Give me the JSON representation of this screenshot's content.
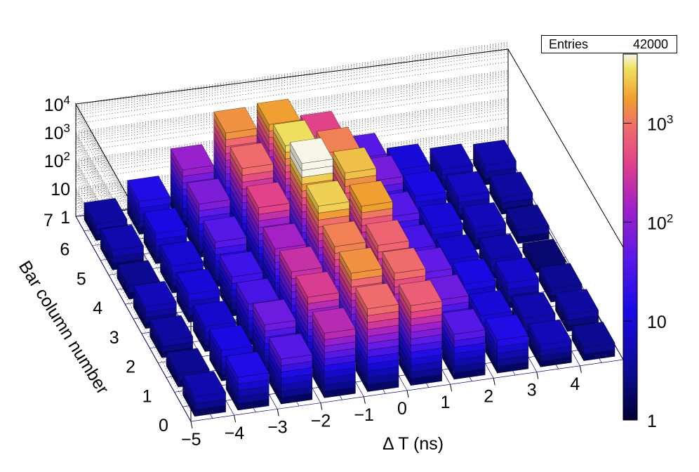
{
  "stats_box": {
    "label": "Entries",
    "value": "42000"
  },
  "chart_data": {
    "type": "lego",
    "title": "",
    "xlabel": "Δ T (ns)",
    "ylabel": "Bar column number",
    "zscale": "log",
    "xlim": [
      -5,
      5
    ],
    "ylim": [
      0,
      7
    ],
    "zlim": [
      1,
      10000
    ],
    "x_ticks": [
      "−5",
      "−4",
      "−3",
      "−2",
      "−1",
      "0",
      "1",
      "2",
      "3",
      "4"
    ],
    "y_ticks": [
      "0",
      "1",
      "2",
      "3",
      "4",
      "5",
      "6",
      "7"
    ],
    "z_ticks": [
      "1",
      "10",
      "10<sup>2</sup>",
      "10<sup>3</sup>",
      "10<sup>4</sup>"
    ],
    "palette_ticks": [
      "1",
      "10",
      "10<sup>2</sup>",
      "10<sup>3</sup>"
    ],
    "palette_range": [
      1,
      5000
    ],
    "rows": [
      {
        "y": 0,
        "x": [
          -4.5,
          -3.5,
          -2.5,
          -1.5,
          -0.5,
          0.5,
          1.5,
          2.5,
          3.5,
          4.5
        ],
        "z": [
          5,
          15,
          40,
          200,
          900,
          700,
          40,
          15,
          6,
          3
        ]
      },
      {
        "y": 1,
        "x": [
          -4.5,
          -3.5,
          -2.5,
          -1.5,
          -0.5,
          0.5,
          1.5,
          2.5,
          3.5,
          4.5
        ],
        "z": [
          3,
          12,
          60,
          350,
          1500,
          900,
          60,
          10,
          5,
          4
        ]
      },
      {
        "y": 2,
        "x": [
          -4.5,
          -3.5,
          -2.5,
          -1.5,
          -0.5,
          0.5,
          1.5,
          2.5,
          3.5,
          4.5
        ],
        "z": [
          4,
          8,
          30,
          250,
          1200,
          800,
          50,
          12,
          8,
          3
        ]
      },
      {
        "y": 3,
        "x": [
          -4.5,
          -3.5,
          -2.5,
          -1.5,
          -0.5,
          0.5,
          1.5,
          2.5,
          3.5,
          4.5
        ],
        "z": [
          6,
          10,
          25,
          150,
          3000,
          1800,
          30,
          8,
          5,
          2
        ]
      },
      {
        "y": 4,
        "x": [
          -4.5,
          -3.5,
          -2.5,
          -1.5,
          -0.5,
          0.5,
          1.5,
          2.5,
          3.5,
          4.5
        ],
        "z": [
          3,
          9,
          40,
          400,
          9000,
          2500,
          40,
          10,
          6,
          3
        ]
      },
      {
        "y": 5,
        "x": [
          -4.5,
          -3.5,
          -2.5,
          -1.5,
          -0.5,
          0.5,
          1.5,
          2.5,
          3.5,
          4.5
        ],
        "z": [
          5,
          12,
          80,
          900,
          3500,
          1200,
          70,
          12,
          7,
          4
        ]
      },
      {
        "y": 6,
        "x": [
          -4.5,
          -3.5,
          -2.5,
          -1.5,
          -0.5,
          0.5,
          1.5,
          2.5,
          3.5,
          4.5
        ],
        "z": [
          4,
          15,
          120,
          1500,
          1800,
          400,
          40,
          10,
          6,
          5
        ]
      }
    ]
  }
}
